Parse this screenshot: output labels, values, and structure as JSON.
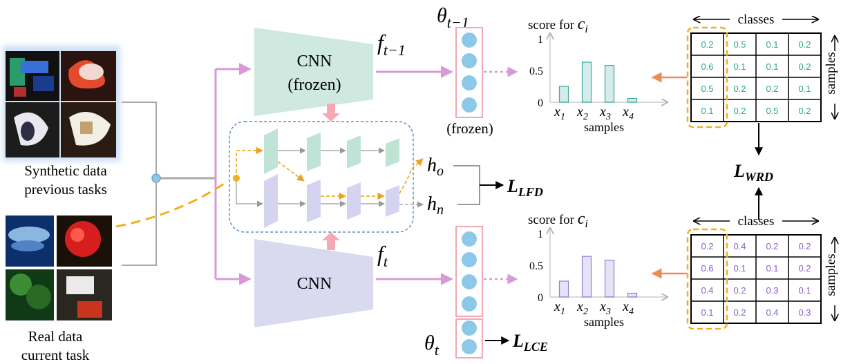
{
  "inputs": {
    "synthetic_label_line1": "Synthetic data",
    "synthetic_label_line2": "previous tasks",
    "real_label_line1": "Real data",
    "real_label_line2": "current task"
  },
  "networks": {
    "old": {
      "line1": "CNN",
      "line2": "(frozen)",
      "feature_name": "f",
      "feature_sub": "t−1",
      "classifier_name": "θ",
      "classifier_sub": "t−1",
      "classifier_note": "(frozen)"
    },
    "new": {
      "line1": "CNN",
      "feature_name": "f",
      "feature_sub": "t",
      "classifier_name": "θ",
      "classifier_sub": "t"
    }
  },
  "features": {
    "h_old": "h",
    "h_old_sub": "o",
    "h_new": "h",
    "h_new_sub": "n"
  },
  "losses": {
    "lfd": "L",
    "lfd_sub": "LFD",
    "lce": "L",
    "lce_sub": "LCE",
    "wrd": "L",
    "wrd_sub": "WRD"
  },
  "charts_labels": {
    "title_prefix": "score for ",
    "title_var": "c",
    "title_sub": "i",
    "xlabel": "samples"
  },
  "chart_data": [
    {
      "type": "bar",
      "title": "score for c_i",
      "xlabel": "samples",
      "categories": [
        "x1",
        "x2",
        "x3",
        "x4"
      ],
      "values": [
        0.25,
        0.63,
        0.58,
        0.06
      ],
      "yticks": [
        "0",
        "0.5",
        "1"
      ],
      "ylim": [
        0,
        1
      ],
      "color": "#3aa99f"
    },
    {
      "type": "bar",
      "title": "score for c_i",
      "xlabel": "samples",
      "categories": [
        "x1",
        "x2",
        "x3",
        "x4"
      ],
      "values": [
        0.25,
        0.64,
        0.58,
        0.06
      ],
      "yticks": [
        "0",
        "0.5",
        "1"
      ],
      "ylim": [
        0,
        1
      ],
      "color": "#8e7fd6"
    }
  ],
  "matrices": {
    "header_classes": "classes",
    "header_samples": "samples",
    "old": [
      [
        "0.2",
        "0.5",
        "0.1",
        "0.2"
      ],
      [
        "0.6",
        "0.1",
        "0.1",
        "0.2"
      ],
      [
        "0.5",
        "0.2",
        "0.2",
        "0.1"
      ],
      [
        "0.1",
        "0.2",
        "0.5",
        "0.2"
      ]
    ],
    "new": [
      [
        "0.2",
        "0.4",
        "0.2",
        "0.2"
      ],
      [
        "0.6",
        "0.1",
        "0.1",
        "0.2"
      ],
      [
        "0.4",
        "0.2",
        "0.3",
        "0.1"
      ],
      [
        "0.1",
        "0.2",
        "0.4",
        "0.3"
      ]
    ],
    "old_color": "#2aa98a",
    "new_color": "#8a5fc8"
  },
  "colors": {
    "teal_net": "#cfe9e0",
    "purple_net": "#d9d9f0",
    "pink_arrow": "#d79ad6",
    "orange": "#f0a020",
    "blue_neuron": "#8ec8e8"
  }
}
